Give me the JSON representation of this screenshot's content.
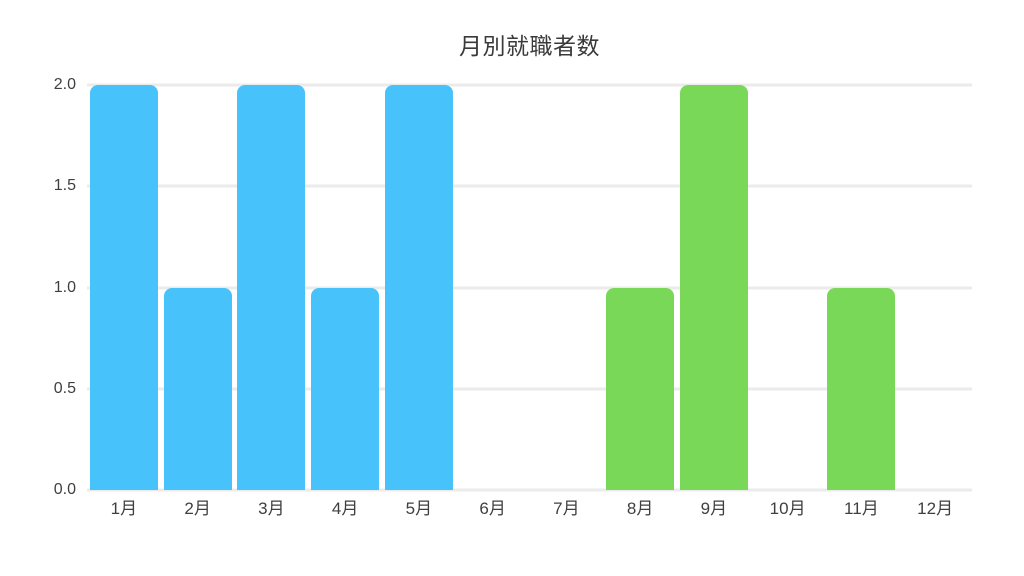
{
  "chart_data": {
    "type": "bar",
    "title": "月別就職者数",
    "categories": [
      "1月",
      "2月",
      "3月",
      "4月",
      "5月",
      "6月",
      "7月",
      "8月",
      "9月",
      "10月",
      "11月",
      "12月"
    ],
    "values": [
      2,
      1,
      2,
      1,
      2,
      0,
      0,
      1,
      2,
      0,
      1,
      0
    ],
    "bar_colors": [
      "#48C2FA",
      "#48C2FA",
      "#48C2FA",
      "#48C2FA",
      "#48C2FA",
      null,
      null,
      "#7AD858",
      "#7AD858",
      null,
      "#7AD858",
      null
    ],
    "series_colors": {
      "blue": "#48C2FA",
      "green": "#7AD858"
    },
    "xlabel": "",
    "ylabel": "",
    "y_axis": {
      "min": 0,
      "max": 2,
      "ticks": [
        "0.0",
        "0.5",
        "1.0",
        "1.5",
        "2.0"
      ]
    },
    "grid": "horizontal",
    "grid_color": "#ebebeb",
    "text_color": "#3f3f3f",
    "background_color": "#ffffff",
    "legend": "none"
  }
}
